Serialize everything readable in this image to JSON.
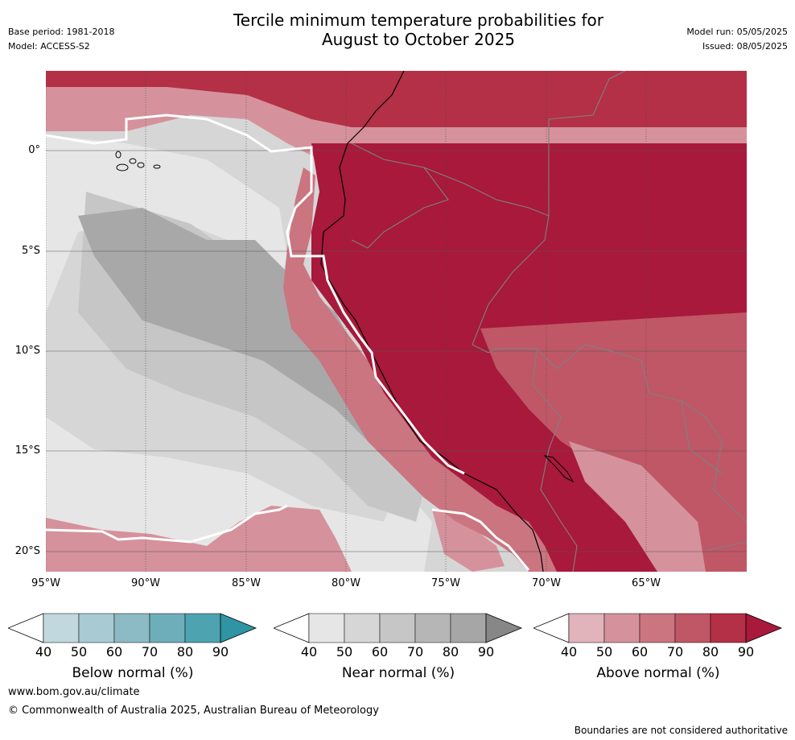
{
  "header": {
    "title_line1": "Tercile minimum temperature probabilities for",
    "title_line2": "August to October 2025",
    "base_period": "Base period: 1981-2018",
    "model": "Model: ACCESS-S2",
    "model_run": "Model run: 05/05/2025",
    "issued": "Issued: 08/05/2025"
  },
  "axes": {
    "lat_labels": [
      "0°",
      "5°S",
      "10°S",
      "15°S",
      "20°S"
    ],
    "lon_labels": [
      "95°W",
      "90°W",
      "85°W",
      "80°W",
      "75°W",
      "70°W",
      "65°W"
    ]
  },
  "colorbars": [
    {
      "id": "below",
      "title": "Below normal (%)",
      "ticks": [
        "40",
        "50",
        "60",
        "70",
        "80",
        "90"
      ],
      "colors": [
        "#c0d8de",
        "#a8cad2",
        "#8cbac5",
        "#6eaeba",
        "#4ea3b1",
        "#2f95a4"
      ]
    },
    {
      "id": "near",
      "title": "Near normal (%)",
      "ticks": [
        "40",
        "50",
        "60",
        "70",
        "80",
        "90"
      ],
      "colors": [
        "#e6e6e6",
        "#d6d6d6",
        "#c6c6c6",
        "#b6b6b6",
        "#a6a6a6",
        "#878787"
      ]
    },
    {
      "id": "above",
      "title": "Above normal (%)",
      "ticks": [
        "40",
        "50",
        "60",
        "70",
        "80",
        "90"
      ],
      "colors": [
        "#e1b3ba",
        "#d5929c",
        "#ca7580",
        "#bf5766",
        "#b43046",
        "#a8193b"
      ]
    }
  ],
  "footer": {
    "url": "www.bom.gov.au/climate",
    "copyright": "© Commonwealth of Australia 2025, Australian Bureau of Meteorology",
    "disclaimer": "Boundaries are not considered authoritative"
  }
}
